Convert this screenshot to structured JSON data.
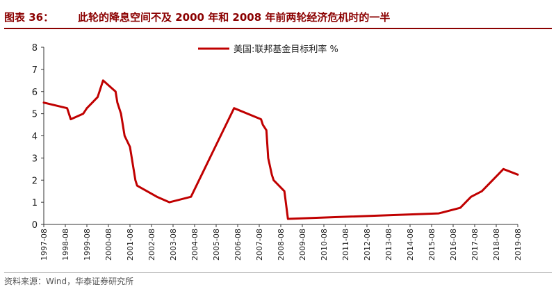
{
  "header": {
    "fig_label": "图表 36：",
    "title": "此轮的降息空间不及 2000 年和 2008 年前两轮经济危机时的一半"
  },
  "source": "资料来源：Wind，华泰证券研究所",
  "colors": {
    "series": "#c00000",
    "title": "#8b0000"
  },
  "chart_data": {
    "type": "line",
    "xlabel": "",
    "ylabel": "",
    "ylim": [
      0,
      8
    ],
    "yticks": [
      0,
      1,
      2,
      3,
      4,
      5,
      6,
      7,
      8
    ],
    "xlim": [
      1997.583,
      2019.583
    ],
    "xticks": [
      "1997-08",
      "1998-08",
      "1999-08",
      "2000-08",
      "2001-08",
      "2002-08",
      "2003-08",
      "2004-08",
      "2005-08",
      "2006-08",
      "2007-08",
      "2008-08",
      "2009-08",
      "2010-08",
      "2011-08",
      "2012-08",
      "2013-08",
      "2014-08",
      "2015-08",
      "2016-08",
      "2017-08",
      "2018-08",
      "2019-08"
    ],
    "legend_position": "top",
    "grid": false,
    "series": [
      {
        "name": "美国:联邦基金目标利率 %",
        "points": [
          [
            "1997-08",
            5.5
          ],
          [
            "1998-09",
            5.25
          ],
          [
            "1998-10",
            5.0
          ],
          [
            "1998-11",
            4.75
          ],
          [
            "1999-06",
            5.0
          ],
          [
            "1999-08",
            5.25
          ],
          [
            "1999-11",
            5.5
          ],
          [
            "2000-02",
            5.75
          ],
          [
            "2000-03",
            6.0
          ],
          [
            "2000-05",
            6.5
          ],
          [
            "2000-12",
            6.0
          ],
          [
            "2001-01",
            5.5
          ],
          [
            "2001-03",
            5.0
          ],
          [
            "2001-04",
            4.5
          ],
          [
            "2001-05",
            4.0
          ],
          [
            "2001-08",
            3.5
          ],
          [
            "2001-09",
            3.0
          ],
          [
            "2001-10",
            2.5
          ],
          [
            "2001-11",
            2.0
          ],
          [
            "2001-12",
            1.75
          ],
          [
            "2002-11",
            1.25
          ],
          [
            "2003-06",
            1.0
          ],
          [
            "2004-06",
            1.25
          ],
          [
            "2004-12",
            2.25
          ],
          [
            "2005-06",
            3.25
          ],
          [
            "2005-12",
            4.25
          ],
          [
            "2006-06",
            5.25
          ],
          [
            "2007-09",
            4.75
          ],
          [
            "2007-10",
            4.5
          ],
          [
            "2007-12",
            4.25
          ],
          [
            "2008-01",
            3.0
          ],
          [
            "2008-03",
            2.25
          ],
          [
            "2008-04",
            2.0
          ],
          [
            "2008-10",
            1.5
          ],
          [
            "2008-12",
            0.25
          ],
          [
            "2015-12",
            0.5
          ],
          [
            "2016-12",
            0.75
          ],
          [
            "2017-03",
            1.0
          ],
          [
            "2017-06",
            1.25
          ],
          [
            "2017-12",
            1.5
          ],
          [
            "2018-03",
            1.75
          ],
          [
            "2018-06",
            2.0
          ],
          [
            "2018-09",
            2.25
          ],
          [
            "2018-12",
            2.5
          ],
          [
            "2019-08",
            2.25
          ]
        ]
      }
    ]
  }
}
